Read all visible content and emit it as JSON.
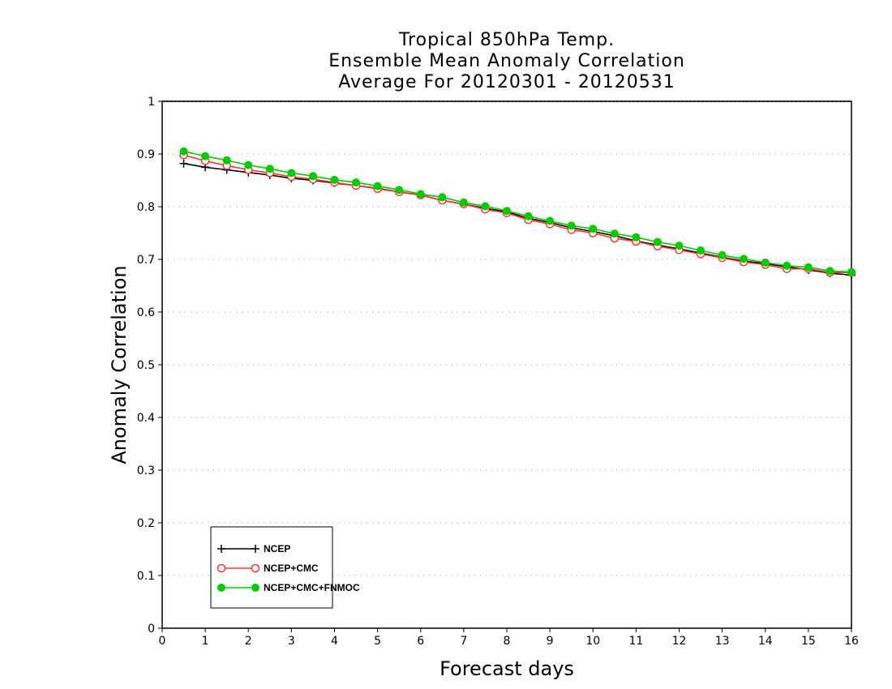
{
  "chart_data": {
    "type": "line",
    "title": [
      "Tropical 850hPa Temp.",
      "Ensemble Mean Anomaly Correlation",
      "Average For 20120301 - 20120531"
    ],
    "xlabel": "Forecast days",
    "ylabel": "Anomaly Correlation",
    "xlim": [
      0,
      16
    ],
    "ylim": [
      0,
      1
    ],
    "xticks": [
      "0",
      "1",
      "2",
      "3",
      "4",
      "5",
      "6",
      "7",
      "8",
      "9",
      "10",
      "11",
      "12",
      "13",
      "14",
      "15",
      "16"
    ],
    "yticks": [
      "0",
      "0.1",
      "0.2",
      "0.3",
      "0.4",
      "0.5",
      "0.6",
      "0.7",
      "0.8",
      "0.9",
      "1"
    ],
    "grid": "horizontal-dotted",
    "legend_position": "bottom-left",
    "x": [
      0.5,
      1,
      1.5,
      2,
      2.5,
      3,
      3.5,
      4,
      4.5,
      5,
      5.5,
      6,
      6.5,
      7,
      7.5,
      8,
      8.5,
      9,
      9.5,
      10,
      10.5,
      11,
      11.5,
      12,
      12.5,
      13,
      13.5,
      14,
      14.5,
      15,
      15.5,
      16
    ],
    "series": [
      {
        "name": "NCEP",
        "color": "#000000",
        "marker": "plus",
        "values": [
          0.882,
          0.875,
          0.87,
          0.865,
          0.86,
          0.854,
          0.85,
          0.845,
          0.84,
          0.835,
          0.828,
          0.822,
          0.812,
          0.805,
          0.797,
          0.79,
          0.778,
          0.77,
          0.76,
          0.753,
          0.745,
          0.735,
          0.727,
          0.72,
          0.712,
          0.704,
          0.697,
          0.692,
          0.686,
          0.68,
          0.674,
          0.67
        ]
      },
      {
        "name": "NCEP+CMC",
        "color": "#ff3333",
        "marker": "open-circle",
        "values": [
          0.898,
          0.887,
          0.878,
          0.87,
          0.864,
          0.857,
          0.852,
          0.846,
          0.84,
          0.834,
          0.828,
          0.822,
          0.812,
          0.805,
          0.795,
          0.788,
          0.775,
          0.767,
          0.756,
          0.75,
          0.74,
          0.734,
          0.725,
          0.718,
          0.71,
          0.703,
          0.695,
          0.69,
          0.682,
          0.682,
          0.675,
          0.675
        ]
      },
      {
        "name": "NCEP+CMC+FNMOC",
        "color": "#00cc00",
        "marker": "filled-circle",
        "values": [
          0.905,
          0.896,
          0.888,
          0.879,
          0.872,
          0.864,
          0.858,
          0.851,
          0.846,
          0.839,
          0.832,
          0.824,
          0.818,
          0.808,
          0.801,
          0.792,
          0.782,
          0.773,
          0.764,
          0.758,
          0.749,
          0.742,
          0.733,
          0.726,
          0.717,
          0.708,
          0.701,
          0.694,
          0.688,
          0.685,
          0.678,
          0.676
        ]
      }
    ]
  }
}
